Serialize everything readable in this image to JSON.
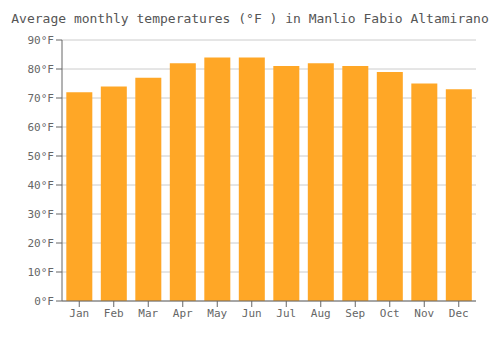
{
  "chart_data": {
    "type": "bar",
    "title": "Average monthly temperatures (°F ) in Manlio Fabio Altamirano",
    "categories": [
      "Jan",
      "Feb",
      "Mar",
      "Apr",
      "May",
      "Jun",
      "Jul",
      "Aug",
      "Sep",
      "Oct",
      "Nov",
      "Dec"
    ],
    "values": [
      72,
      74,
      77,
      82,
      84,
      84,
      81,
      82,
      81,
      79,
      75,
      73
    ],
    "color": "#FFA726",
    "ylim": [
      0,
      90
    ],
    "yticks": [
      {
        "value": 0,
        "label": "0°F"
      },
      {
        "value": 10,
        "label": "10°F"
      },
      {
        "value": 20,
        "label": "20°F"
      },
      {
        "value": 30,
        "label": "30°F"
      },
      {
        "value": 40,
        "label": "40°F"
      },
      {
        "value": 50,
        "label": "50°F"
      },
      {
        "value": 60,
        "label": "60°F"
      },
      {
        "value": 70,
        "label": "70°F"
      },
      {
        "value": 80,
        "label": "80°F"
      },
      {
        "value": 90,
        "label": "90°F"
      }
    ],
    "grid": true
  }
}
